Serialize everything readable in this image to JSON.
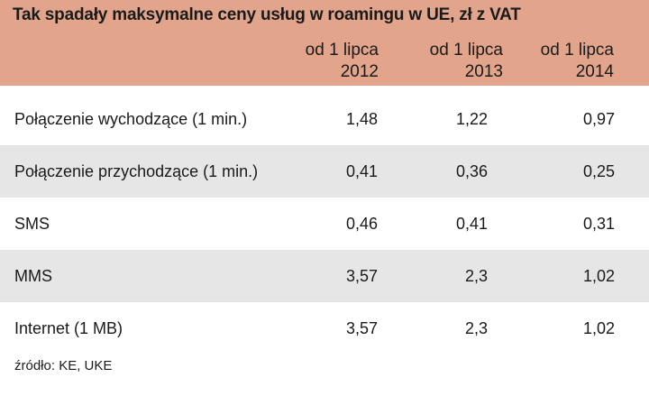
{
  "chart_data": {
    "type": "table",
    "title": "Tak spadały maksymalne ceny usług w roamingu w UE, zł z VAT",
    "columns": [
      {
        "line1": "od 1 lipca",
        "line2": "2012"
      },
      {
        "line1": "od 1 lipca",
        "line2": "2013"
      },
      {
        "line1": "od 1 lipca",
        "line2": "2014"
      }
    ],
    "rows": [
      {
        "label": "Połączenie wychodzące (1 min.)",
        "values": [
          "1,48",
          "1,22",
          "0,97"
        ]
      },
      {
        "label": "Połączenie przychodzące (1 min.)",
        "values": [
          "0,41",
          "0,36",
          "0,25"
        ]
      },
      {
        "label": "SMS",
        "values": [
          "0,46",
          "0,41",
          "0,31"
        ]
      },
      {
        "label": "MMS",
        "values": [
          "3,57",
          "2,3",
          "1,02"
        ]
      },
      {
        "label": "Internet (1 MB)",
        "values": [
          "3,57",
          "2,3",
          "1,02"
        ]
      }
    ],
    "source": "źródło: KE, UKE"
  },
  "colors": {
    "header": "#e2a58c",
    "shaded_row": "#e6e6e6",
    "background": "#ffffff"
  }
}
